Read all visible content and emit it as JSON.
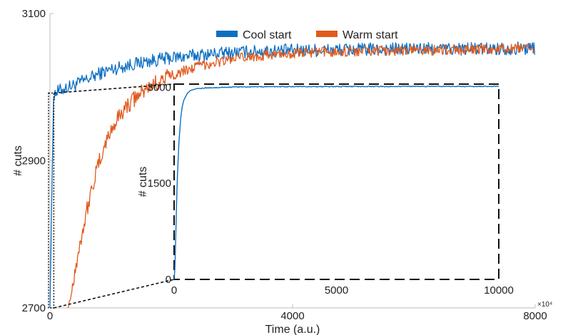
{
  "chart_data": [
    {
      "type": "line",
      "name": "main",
      "xlabel": "Time (a.u.)",
      "ylabel": "# cuts",
      "xlim": [
        0,
        8000
      ],
      "ylim": [
        2700,
        3100
      ],
      "xticks": [
        0,
        4000,
        8000
      ],
      "yticks": [
        2700,
        2900,
        3100
      ],
      "xtick_labels": [
        "0",
        "4000",
        "8000"
      ],
      "ytick_labels": [
        "2700",
        "2900",
        "3100"
      ],
      "x_exponent_label": "×10⁴",
      "legend_position": "top-center",
      "series": [
        {
          "name": "Cool start",
          "color": "#0e6fc1",
          "x": [
            0,
            40,
            60,
            100,
            200,
            300,
            400,
            600,
            800,
            1000,
            1300,
            1600,
            2000,
            2500,
            3000,
            3500,
            4000,
            5000,
            6000,
            7000,
            8000
          ],
          "y": [
            2700,
            2700,
            2990,
            2993,
            2997,
            3000,
            3003,
            3010,
            3018,
            3024,
            3030,
            3035,
            3040,
            3044,
            3047,
            3049,
            3050,
            3051,
            3052,
            3052,
            3053
          ]
        },
        {
          "name": "Warm start",
          "color": "#e05a1e",
          "x": [
            300,
            350,
            400,
            500,
            600,
            700,
            800,
            900,
            1000,
            1100,
            1200,
            1400,
            1600,
            1800,
            2000,
            2200,
            2500,
            3000,
            3500,
            4000,
            5000,
            6000,
            7000,
            8000
          ],
          "y": [
            2700,
            2720,
            2745,
            2790,
            2830,
            2865,
            2895,
            2920,
            2940,
            2955,
            2968,
            2985,
            2998,
            3008,
            3016,
            3022,
            3030,
            3038,
            3043,
            3046,
            3049,
            3050,
            3051,
            3052
          ]
        }
      ]
    },
    {
      "type": "line",
      "name": "inset",
      "xlabel": "",
      "ylabel": "# cuts",
      "xlim": [
        0,
        10000
      ],
      "ylim": [
        0,
        3050
      ],
      "xticks": [
        0,
        5000,
        10000
      ],
      "yticks": [
        0,
        1500,
        3000
      ],
      "xtick_labels": [
        "0",
        "5000",
        "10000"
      ],
      "ytick_labels": [
        "0",
        "1500",
        "3000"
      ],
      "series": [
        {
          "name": "Cool start",
          "color": "#0e6fc1",
          "x": [
            0,
            30,
            60,
            100,
            150,
            200,
            250,
            300,
            400,
            500,
            700,
            1000,
            1500,
            2000,
            3000,
            5000,
            7000,
            10000
          ],
          "y": [
            0,
            200,
            900,
            1600,
            2150,
            2500,
            2700,
            2800,
            2900,
            2950,
            2980,
            2990,
            3000,
            3005,
            3010,
            3012,
            3014,
            3015
          ]
        }
      ]
    }
  ]
}
